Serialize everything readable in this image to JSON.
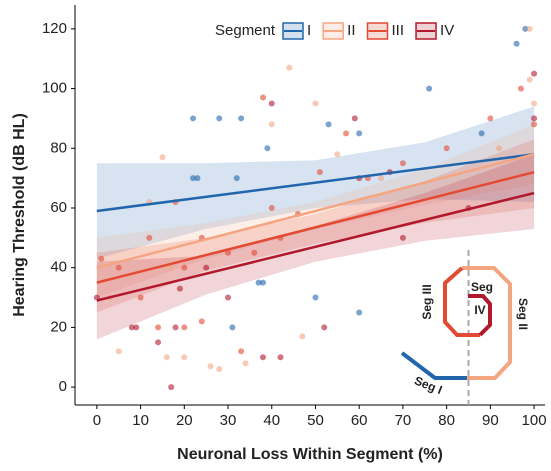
{
  "chart_data": {
    "type": "scatter",
    "x_label": "Neuronal Loss Within Segment (%)",
    "y_label": "Hearing Threshold (dB HL)",
    "legend_title": "Segment",
    "xlim": [
      -5,
      102.5
    ],
    "ylim": [
      -6,
      128
    ],
    "xticks": [
      0,
      10,
      20,
      30,
      40,
      50,
      60,
      70,
      80,
      90,
      100
    ],
    "yticks": [
      0,
      20,
      40,
      60,
      80,
      100,
      120
    ],
    "vline": 85,
    "annotations": [
      "Seg III",
      "Seg",
      "IV",
      "Seg II",
      "Seg I"
    ],
    "series": [
      {
        "name": "I",
        "color": "#2166ac",
        "x": [
          22,
          28,
          33,
          32,
          23,
          22,
          37,
          38,
          31,
          60,
          53,
          50,
          60,
          76,
          88,
          96,
          98,
          39
        ],
        "values": [
          90,
          90,
          90,
          70,
          70,
          70,
          35,
          35,
          20,
          25,
          88,
          30,
          85,
          100,
          85,
          115,
          120,
          80
        ],
        "fit": {
          "x": [
            0,
            100
          ],
          "y": [
            59,
            78
          ]
        },
        "band": {
          "x": [
            0,
            25,
            50,
            75,
            100
          ],
          "lower": [
            43,
            53,
            60,
            63,
            62
          ],
          "upper": [
            75,
            75,
            76,
            82,
            94
          ]
        }
      },
      {
        "name": "II",
        "color": "#f4a582",
        "x": [
          44,
          15,
          16,
          20,
          26,
          28,
          34,
          47,
          12,
          17,
          3,
          5,
          50,
          65,
          92,
          99,
          100,
          99,
          40,
          55
        ],
        "values": [
          107,
          77,
          10,
          10,
          7,
          6,
          8,
          17,
          62,
          40,
          30,
          12,
          95,
          70,
          80,
          120,
          95,
          103,
          88,
          78
        ],
        "fit": {
          "x": [
            0,
            100
          ],
          "y": [
            40,
            78
          ]
        },
        "band": {
          "x": [
            0,
            25,
            50,
            75,
            100
          ],
          "lower": [
            30,
            43,
            53,
            61,
            68
          ],
          "upper": [
            50,
            55,
            62,
            73,
            88
          ]
        }
      },
      {
        "name": "III",
        "color": "#e34a33",
        "x": [
          1,
          5,
          10,
          12,
          20,
          24,
          30,
          36,
          38,
          40,
          42,
          46,
          51,
          57,
          62,
          70,
          80,
          90,
          100,
          97,
          18,
          24,
          14,
          33,
          20
        ],
        "values": [
          43,
          40,
          30,
          50,
          40,
          50,
          45,
          45,
          97,
          60,
          50,
          58,
          72,
          85,
          70,
          75,
          80,
          90,
          88,
          100,
          62,
          22,
          20,
          12,
          20
        ],
        "fit": {
          "x": [
            0,
            100
          ],
          "y": [
            35,
            72
          ]
        },
        "band": {
          "x": [
            0,
            25,
            50,
            75,
            100
          ],
          "lower": [
            25,
            39,
            48,
            55,
            60
          ],
          "upper": [
            45,
            50,
            58,
            69,
            83
          ]
        }
      },
      {
        "name": "IV",
        "color": "#b2182b",
        "x": [
          0,
          8,
          14,
          17,
          18,
          25,
          30,
          38,
          40,
          42,
          60,
          67,
          70,
          85,
          100,
          100,
          9,
          19,
          52,
          59
        ],
        "values": [
          30,
          20,
          15,
          0,
          20,
          40,
          30,
          10,
          95,
          10,
          70,
          72,
          50,
          60,
          105,
          90,
          20,
          33,
          20,
          90
        ],
        "fit": {
          "x": [
            0,
            100
          ],
          "y": [
            29,
            65
          ]
        },
        "band": {
          "x": [
            0,
            25,
            50,
            75,
            100
          ],
          "lower": [
            16,
            31,
            42,
            49,
            53
          ],
          "upper": [
            42,
            44,
            54,
            65,
            78
          ]
        }
      }
    ]
  }
}
